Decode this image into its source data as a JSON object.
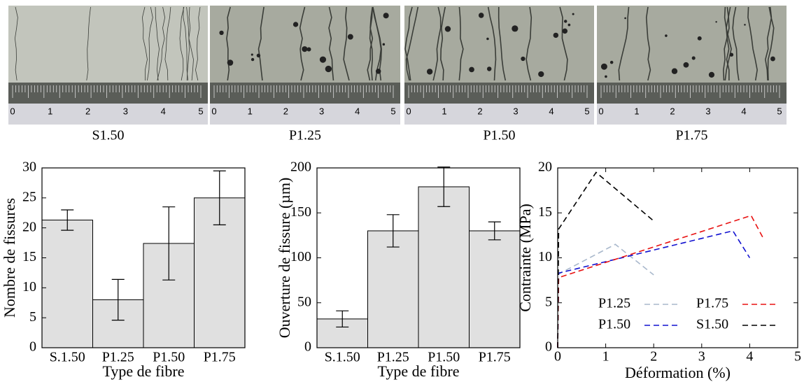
{
  "photos": {
    "captions": [
      "S1.50",
      "P1.25",
      "P1.50",
      "P1.75"
    ],
    "ruler_ticks": [
      0,
      1,
      2,
      3,
      4,
      5
    ]
  },
  "chart_data": [
    {
      "type": "bar",
      "ylabel": "Nombre de fissures",
      "xlabel": "Type de fibre",
      "categories": [
        "S.1.50",
        "P1.25",
        "P1.50",
        "P1.75"
      ],
      "values": [
        21.3,
        8,
        17.4,
        25
      ],
      "errors": [
        1.7,
        3.4,
        6.1,
        4.5
      ],
      "color": "#e0e0e0",
      "ylim": [
        0,
        30
      ],
      "yticks": [
        0,
        5,
        10,
        15,
        20,
        25,
        30
      ]
    },
    {
      "type": "bar",
      "ylabel": "Ouverture de fissure (µm)",
      "xlabel": "Type de fibre",
      "categories": [
        "S.1.50",
        "P1.25",
        "P1.50",
        "P1.75"
      ],
      "values": [
        32,
        130,
        179,
        130
      ],
      "errors": [
        9,
        18,
        22,
        10
      ],
      "color": "#e0e0e0",
      "ylim": [
        0,
        200
      ],
      "yticks": [
        0,
        50,
        100,
        150,
        200
      ]
    },
    {
      "type": "line",
      "ylabel": "Contrainte (MPa)",
      "xlabel": "Déformation (%)",
      "xlim": [
        0,
        5
      ],
      "xticks": [
        0,
        1,
        2,
        3,
        4,
        5
      ],
      "ylim": [
        0,
        20
      ],
      "yticks": [
        0,
        5,
        10,
        15,
        20
      ],
      "legend": "lower right",
      "series": [
        {
          "name": "P1.25",
          "color": "#a9b8cc",
          "x": [
            0,
            0.02,
            1.2,
            2.0
          ],
          "values": [
            0,
            8.2,
            11.5,
            8.1
          ]
        },
        {
          "name": "P1.50",
          "color": "#1010d0",
          "x": [
            0,
            0.02,
            3.65,
            4.0
          ],
          "values": [
            0,
            8.3,
            13,
            10
          ]
        },
        {
          "name": "P1.75",
          "color": "#e81010",
          "x": [
            0,
            0.02,
            4.03,
            4.3
          ],
          "values": [
            0,
            7.8,
            14.7,
            12
          ]
        },
        {
          "name": "S1.50",
          "color": "#000000",
          "x": [
            0,
            0.02,
            0.8,
            2.0
          ],
          "values": [
            0,
            13.2,
            19.5,
            14.1
          ]
        }
      ]
    }
  ]
}
